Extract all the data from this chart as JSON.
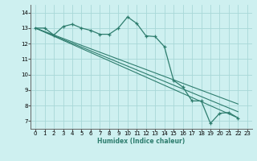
{
  "xlabel": "Humidex (Indice chaleur)",
  "bg_color": "#cef0f0",
  "grid_color": "#a8d8d8",
  "line_color": "#2e7d6e",
  "xlim": [
    -0.5,
    23.5
  ],
  "ylim": [
    6.5,
    14.5
  ],
  "xticks": [
    0,
    1,
    2,
    3,
    4,
    5,
    6,
    7,
    8,
    9,
    10,
    11,
    12,
    13,
    14,
    15,
    16,
    17,
    18,
    19,
    20,
    21,
    22,
    23
  ],
  "yticks": [
    7,
    8,
    9,
    10,
    11,
    12,
    13,
    14
  ],
  "series_main": {
    "x": [
      0,
      1,
      2,
      3,
      4,
      5,
      6,
      7,
      8,
      9,
      10,
      11,
      12,
      13,
      14,
      15,
      16,
      17,
      18,
      19,
      20,
      21,
      22
    ],
    "y": [
      13.0,
      13.0,
      12.55,
      13.1,
      13.25,
      13.0,
      12.85,
      12.6,
      12.6,
      13.0,
      13.72,
      13.3,
      12.5,
      12.45,
      11.8,
      9.62,
      9.2,
      8.3,
      8.3,
      6.85,
      7.5,
      7.55,
      7.2
    ]
  },
  "series_lines": [
    {
      "x": [
        0,
        22
      ],
      "y": [
        13.0,
        7.2
      ]
    },
    {
      "x": [
        0,
        22
      ],
      "y": [
        13.0,
        7.6
      ]
    },
    {
      "x": [
        0,
        22
      ],
      "y": [
        13.0,
        8.1
      ]
    }
  ]
}
